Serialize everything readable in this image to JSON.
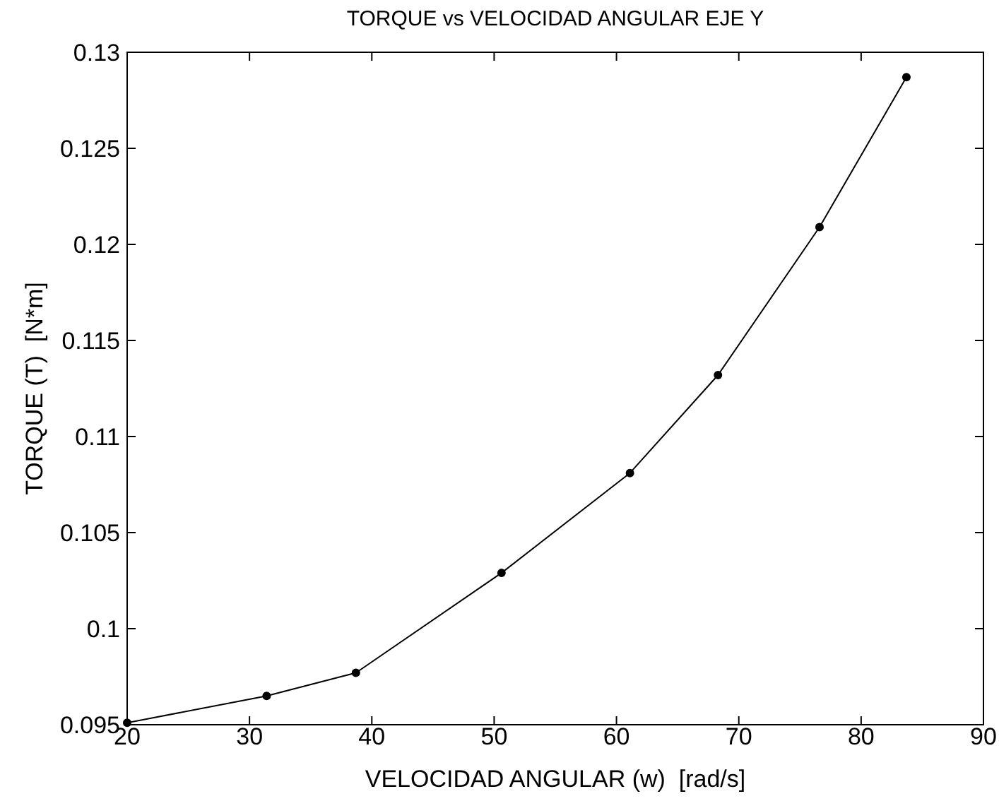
{
  "chart_data": {
    "type": "line",
    "title": "TORQUE vs VELOCIDAD ANGULAR EJE Y",
    "xlabel": "VELOCIDAD ANGULAR (w)  [rad/s]",
    "ylabel": "TORQUE (T)  [N*m]",
    "x": [
      20,
      31.4,
      38.7,
      50.6,
      61.1,
      68.3,
      76.6,
      83.7
    ],
    "values": [
      0.0951,
      0.0965,
      0.0977,
      0.1029,
      0.1081,
      0.1132,
      0.1209,
      0.1287
    ],
    "color": "#000000",
    "marker": "circle",
    "line_style": "solid",
    "xlim": [
      20,
      90
    ],
    "ylim": [
      0.095,
      0.13
    ],
    "xticks": [
      20,
      30,
      40,
      50,
      60,
      70,
      80,
      90
    ],
    "yticks": [
      0.095,
      0.1,
      0.105,
      0.11,
      0.115,
      0.12,
      0.125,
      0.13
    ]
  }
}
